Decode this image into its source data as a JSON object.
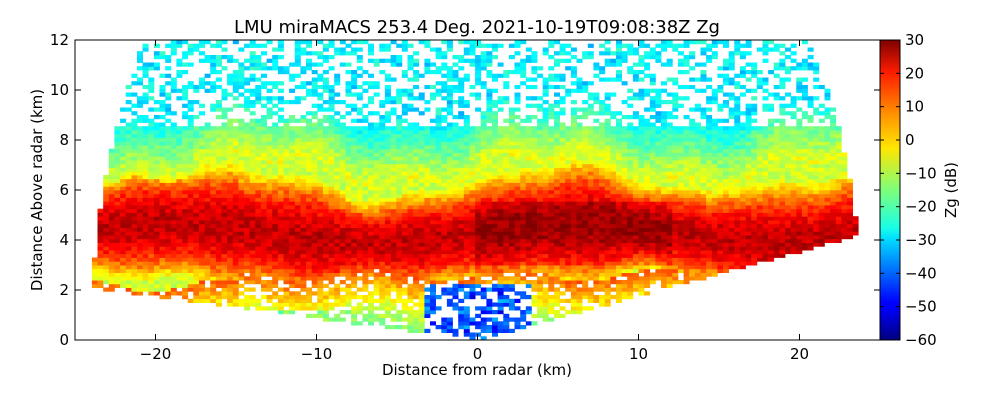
{
  "chart_data": {
    "type": "heatmap",
    "title": "LMU miraMACS 253.4 Deg. 2021-10-19T09:08:38Z  Zg",
    "xlabel": "Distance from radar (km)",
    "ylabel": "Distance Above radar  (km)",
    "xlim": [
      -25,
      25
    ],
    "ylim": [
      0,
      12
    ],
    "x_ticks": [
      -20,
      -10,
      0,
      10,
      20
    ],
    "x_tick_labels": [
      "−20",
      "−10",
      "0",
      "10",
      "20"
    ],
    "y_ticks": [
      0,
      2,
      4,
      6,
      8,
      10,
      12
    ],
    "y_tick_labels": [
      "0",
      "2",
      "4",
      "6",
      "8",
      "10",
      "12"
    ],
    "colorbar": {
      "label": "Zg (dB)",
      "range": [
        -60,
        30
      ],
      "ticks": [
        30,
        20,
        10,
        0,
        -10,
        -20,
        -30,
        -40,
        -50,
        -60
      ],
      "tick_labels": [
        "30",
        "20",
        "10",
        "0",
        "−10",
        "−20",
        "−30",
        "−40",
        "−50",
        "−60"
      ],
      "colormap": "jet"
    },
    "scan": {
      "type": "RHI",
      "azimuth_deg": 253.4,
      "max_range_km": 24,
      "min_elevation_left_deg": 5,
      "min_elevation_right_deg": 10
    },
    "features": [
      {
        "name": "main cloud layer",
        "x_range_km": [
          -24,
          24
        ],
        "height_range_km": [
          2.5,
          7.5
        ],
        "zg_db": 20
      },
      {
        "name": "cloud top / cirrus",
        "height_range_km": [
          7.5,
          12
        ],
        "zg_db": -25
      },
      {
        "name": "weak echo near radar",
        "x_range_km": [
          -3,
          3
        ],
        "height_range_km": [
          0,
          2.2
        ],
        "zg_db": -45
      }
    ]
  }
}
